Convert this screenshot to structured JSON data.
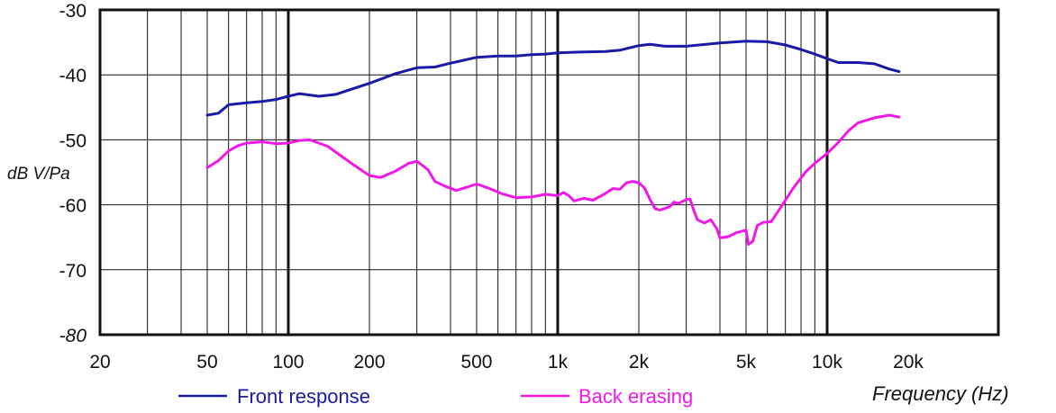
{
  "chart_data": {
    "type": "line",
    "xlabel": "Frequency (Hz)",
    "ylabel": "dB V/Pa",
    "x_scale": "log",
    "xlim": [
      20,
      20000
    ],
    "ylim": [
      -80,
      -30
    ],
    "grid": true,
    "x_ticks": [
      20,
      50,
      100,
      200,
      500,
      1000,
      2000,
      5000,
      10000,
      20000
    ],
    "x_tick_labels": [
      "20",
      "50",
      "100",
      "200",
      "500",
      "1k",
      "2k",
      "5k",
      "10k",
      "20k"
    ],
    "y_ticks": [
      -30,
      -40,
      -50,
      -60,
      -70,
      -80
    ],
    "y_tick_labels": [
      "-30",
      "-40",
      "-50",
      "-60",
      "-70",
      "-80"
    ],
    "legend_position": "bottom",
    "series": [
      {
        "name": "Front response",
        "color": "#1a1aa6",
        "points": [
          [
            50,
            -46.2
          ],
          [
            55,
            -45.9
          ],
          [
            60,
            -44.6
          ],
          [
            70,
            -44.3
          ],
          [
            80,
            -44.1
          ],
          [
            90,
            -43.8
          ],
          [
            100,
            -43.3
          ],
          [
            110,
            -42.9
          ],
          [
            120,
            -43.1
          ],
          [
            130,
            -43.3
          ],
          [
            150,
            -43.0
          ],
          [
            200,
            -41.3
          ],
          [
            250,
            -39.8
          ],
          [
            300,
            -38.9
          ],
          [
            350,
            -38.8
          ],
          [
            400,
            -38.2
          ],
          [
            500,
            -37.3
          ],
          [
            600,
            -37.1
          ],
          [
            700,
            -37.1
          ],
          [
            800,
            -36.9
          ],
          [
            900,
            -36.8
          ],
          [
            1000,
            -36.6
          ],
          [
            1200,
            -36.5
          ],
          [
            1500,
            -36.4
          ],
          [
            1700,
            -36.2
          ],
          [
            2000,
            -35.5
          ],
          [
            2200,
            -35.3
          ],
          [
            2500,
            -35.6
          ],
          [
            3000,
            -35.6
          ],
          [
            4000,
            -35.1
          ],
          [
            5000,
            -34.8
          ],
          [
            6000,
            -34.9
          ],
          [
            7000,
            -35.4
          ],
          [
            8000,
            -36.1
          ],
          [
            9000,
            -36.8
          ],
          [
            10000,
            -37.5
          ],
          [
            11000,
            -38.1
          ],
          [
            13000,
            -38.1
          ],
          [
            15000,
            -38.3
          ],
          [
            17000,
            -39.1
          ],
          [
            18500,
            -39.5
          ]
        ]
      },
      {
        "name": "Back erasing",
        "color": "#f018e8",
        "points": [
          [
            50,
            -54.3
          ],
          [
            55,
            -53.2
          ],
          [
            60,
            -51.7
          ],
          [
            65,
            -50.9
          ],
          [
            70,
            -50.5
          ],
          [
            80,
            -50.3
          ],
          [
            90,
            -50.6
          ],
          [
            100,
            -50.5
          ],
          [
            110,
            -50.1
          ],
          [
            120,
            -50.0
          ],
          [
            140,
            -51.0
          ],
          [
            170,
            -53.5
          ],
          [
            200,
            -55.5
          ],
          [
            220,
            -55.8
          ],
          [
            250,
            -54.8
          ],
          [
            280,
            -53.6
          ],
          [
            300,
            -53.3
          ],
          [
            330,
            -54.6
          ],
          [
            350,
            -56.4
          ],
          [
            380,
            -57.1
          ],
          [
            420,
            -57.8
          ],
          [
            460,
            -57.3
          ],
          [
            500,
            -56.8
          ],
          [
            550,
            -57.4
          ],
          [
            620,
            -58.3
          ],
          [
            700,
            -58.9
          ],
          [
            800,
            -58.8
          ],
          [
            900,
            -58.4
          ],
          [
            950,
            -58.5
          ],
          [
            1000,
            -58.6
          ],
          [
            1050,
            -58.1
          ],
          [
            1100,
            -58.6
          ],
          [
            1150,
            -59.4
          ],
          [
            1250,
            -59.0
          ],
          [
            1350,
            -59.3
          ],
          [
            1500,
            -58.3
          ],
          [
            1600,
            -57.5
          ],
          [
            1700,
            -57.6
          ],
          [
            1800,
            -56.6
          ],
          [
            1900,
            -56.4
          ],
          [
            2000,
            -56.6
          ],
          [
            2100,
            -57.4
          ],
          [
            2200,
            -59.2
          ],
          [
            2300,
            -60.6
          ],
          [
            2400,
            -60.8
          ],
          [
            2600,
            -60.3
          ],
          [
            2700,
            -59.6
          ],
          [
            2800,
            -59.8
          ],
          [
            3000,
            -59.2
          ],
          [
            3100,
            -59.1
          ],
          [
            3200,
            -60.9
          ],
          [
            3300,
            -62.3
          ],
          [
            3500,
            -62.8
          ],
          [
            3700,
            -62.3
          ],
          [
            3900,
            -63.7
          ],
          [
            4000,
            -65.1
          ],
          [
            4300,
            -64.9
          ],
          [
            4600,
            -64.3
          ],
          [
            5000,
            -63.9
          ],
          [
            5100,
            -66.1
          ],
          [
            5300,
            -65.6
          ],
          [
            5500,
            -63.2
          ],
          [
            5800,
            -62.7
          ],
          [
            6200,
            -62.6
          ],
          [
            6800,
            -60.1
          ],
          [
            7500,
            -57.4
          ],
          [
            8300,
            -55.0
          ],
          [
            9000,
            -53.6
          ],
          [
            10000,
            -52.1
          ],
          [
            11000,
            -50.4
          ],
          [
            12000,
            -48.6
          ],
          [
            13000,
            -47.4
          ],
          [
            15000,
            -46.6
          ],
          [
            17000,
            -46.2
          ],
          [
            18500,
            -46.5
          ]
        ]
      }
    ]
  }
}
